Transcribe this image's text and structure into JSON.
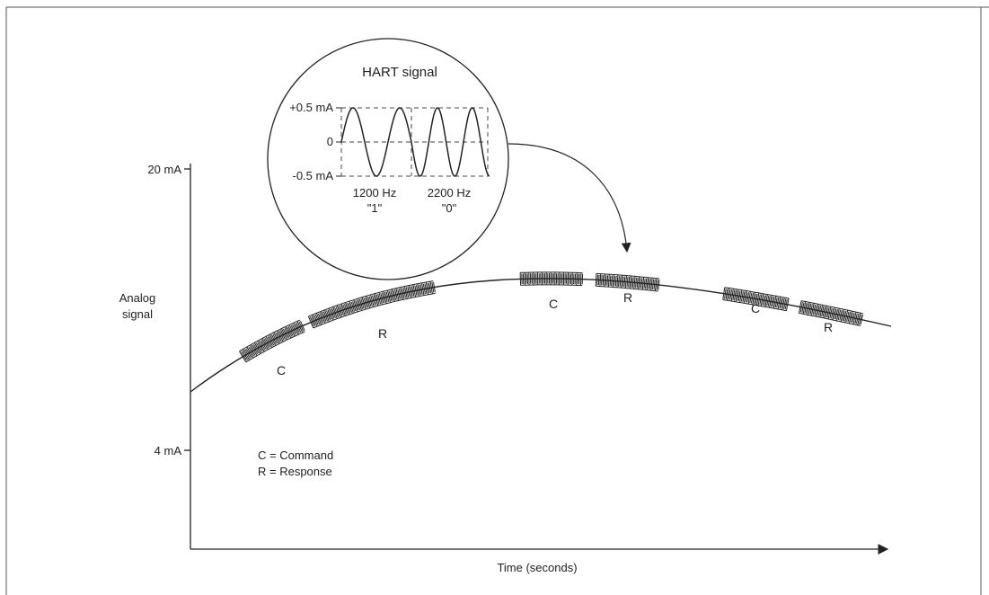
{
  "inset": {
    "title": "HART signal",
    "y_ticks": [
      "+0.5 mA",
      "0",
      "-0.5 mA"
    ],
    "freq_one": "1200 Hz",
    "bit_one": "\"1\"",
    "freq_zero": "2200 Hz",
    "bit_zero": "\"0\""
  },
  "axes": {
    "y_top_label": "20 mA",
    "y_bottom_label": "4 mA",
    "y_axis_title_line1": "Analog",
    "y_axis_title_line2": "signal",
    "x_axis_title": "Time (seconds)"
  },
  "bursts": [
    {
      "label": "C",
      "type": "command"
    },
    {
      "label": "R",
      "type": "response"
    },
    {
      "label": "C",
      "type": "command"
    },
    {
      "label": "R",
      "type": "response"
    },
    {
      "label": "C",
      "type": "command"
    },
    {
      "label": "R",
      "type": "response"
    }
  ],
  "legend": {
    "line1": "C = Command",
    "line2": "R = Response"
  },
  "colors": {
    "ink": "#222222",
    "border": "#555555"
  }
}
